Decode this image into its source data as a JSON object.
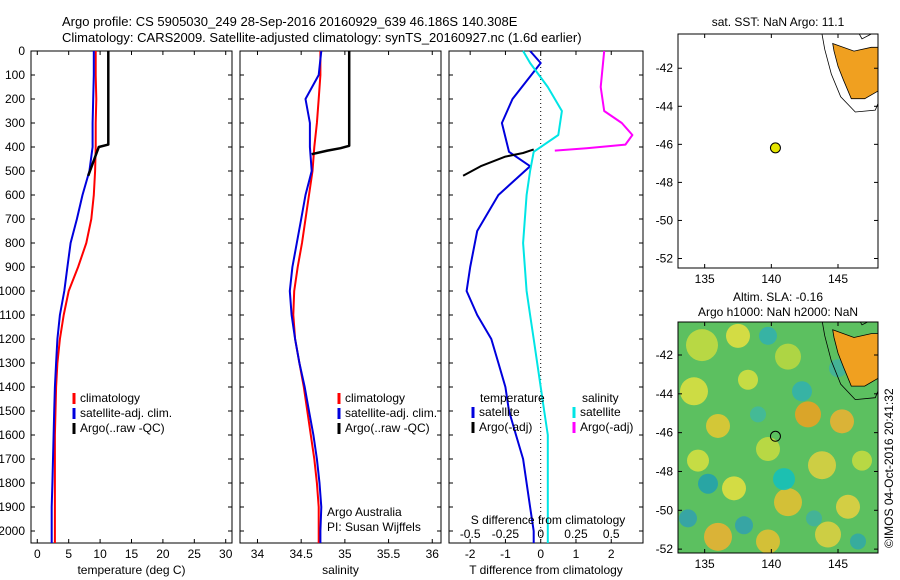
{
  "header": {
    "line1": "Argo profile: CS 5905030_249 28-Sep-2016 20160929_639 46.186S 140.308E",
    "line2": "Climatology: CARS2009. Satellite-adjusted climatology: synTS_20160927.nc (1.6d earlier)"
  },
  "watermark": "©IMOS 04-Oct-2016 20:41:32",
  "colors": {
    "climatology": "#ff0000",
    "satellite": "#0000dd",
    "argo": "#000000",
    "satellite_salinity": "#00e5e5",
    "argo_salinity": "#ff00ff",
    "dot": "#e5e500",
    "land": "#f0a020"
  },
  "chart_data": [
    {
      "type": "line",
      "id": "temperature",
      "xlabel": "temperature (deg C)",
      "ylim": [
        2050,
        0
      ],
      "xlim": [
        -1,
        31
      ],
      "xticks": [
        0,
        5,
        10,
        15,
        20,
        25,
        30
      ],
      "yticks": [
        0,
        100,
        200,
        300,
        400,
        500,
        600,
        700,
        800,
        900,
        1000,
        1100,
        1200,
        1300,
        1400,
        1500,
        1600,
        1700,
        1800,
        1900,
        2000
      ],
      "legend": [
        "climatology",
        "satellite-adj. clim.",
        "Argo(..raw -QC)"
      ],
      "series": [
        {
          "name": "climatology",
          "color": "#ff0000",
          "x": [
            9.3,
            9.3,
            9.4,
            9.3,
            9.3,
            9.2,
            9.0,
            8.6,
            7.8,
            6.5,
            5.0,
            4.2,
            3.6,
            3.2,
            3.0,
            2.9,
            2.8,
            2.8,
            2.8,
            2.8,
            2.8,
            2.8
          ],
          "y": [
            0,
            100,
            200,
            300,
            400,
            500,
            600,
            700,
            800,
            900,
            1000,
            1100,
            1200,
            1300,
            1400,
            1500,
            1600,
            1700,
            1800,
            1900,
            2000,
            2050
          ]
        },
        {
          "name": "satellite-adj. clim.",
          "color": "#0000dd",
          "x": [
            9.0,
            9.0,
            8.9,
            8.8,
            8.8,
            8.3,
            7.2,
            6.3,
            5.3,
            4.8,
            4.3,
            3.6,
            3.2,
            3.0,
            2.8,
            2.7,
            2.6,
            2.5,
            2.4,
            2.3,
            2.3,
            2.3
          ],
          "y": [
            0,
            100,
            200,
            300,
            400,
            500,
            600,
            700,
            800,
            900,
            1000,
            1100,
            1200,
            1300,
            1400,
            1500,
            1600,
            1700,
            1800,
            1900,
            2000,
            2050
          ]
        },
        {
          "name": "Argo(..raw -QC)",
          "color": "#000000",
          "x": [
            11.3,
            11.3,
            11.3,
            11.3,
            11.3,
            9.8,
            9.5,
            8.8,
            8.1
          ],
          "y": [
            0,
            100,
            200,
            300,
            390,
            400,
            420,
            470,
            520
          ]
        }
      ]
    },
    {
      "type": "line",
      "id": "salinity",
      "xlabel": "salinity",
      "ylim": [
        2050,
        0
      ],
      "xlim": [
        33.8,
        36.1
      ],
      "xticks": [
        34,
        34.5,
        35,
        35.5,
        36
      ],
      "xticklabels": [
        "34",
        "34.5",
        "35",
        "35.5",
        "36"
      ],
      "legend": [
        "climatology",
        "satellite-adj. clim.",
        "Argo(..raw -QC)"
      ],
      "annotation": [
        "Argo Australia",
        "PI: Susan Wijffels"
      ],
      "series": [
        {
          "name": "climatology",
          "color": "#ff0000",
          "x": [
            34.72,
            34.72,
            34.7,
            34.68,
            34.65,
            34.63,
            34.59,
            34.55,
            34.51,
            34.46,
            34.42,
            34.41,
            34.43,
            34.48,
            34.53,
            34.57,
            34.61,
            34.65,
            34.68,
            34.7,
            34.7,
            34.7
          ],
          "y": [
            0,
            100,
            200,
            300,
            400,
            500,
            600,
            700,
            800,
            900,
            1000,
            1100,
            1200,
            1300,
            1400,
            1500,
            1600,
            1700,
            1800,
            1900,
            2000,
            2050
          ]
        },
        {
          "name": "satellite-adj. clim.",
          "color": "#0000dd",
          "x": [
            34.73,
            34.7,
            34.55,
            34.6,
            34.6,
            34.62,
            34.55,
            34.5,
            34.45,
            34.4,
            34.37,
            34.39,
            34.43,
            34.48,
            34.54,
            34.59,
            34.64,
            34.68,
            34.71,
            34.73,
            34.72,
            34.72
          ],
          "y": [
            0,
            100,
            200,
            300,
            400,
            500,
            600,
            700,
            800,
            900,
            1000,
            1100,
            1200,
            1300,
            1400,
            1500,
            1600,
            1700,
            1800,
            1900,
            2000,
            2050
          ]
        },
        {
          "name": "Argo(..raw -QC)",
          "color": "#000000",
          "x": [
            35.05,
            35.05,
            35.05,
            35.05,
            35.05,
            34.95,
            34.8,
            34.62
          ],
          "y": [
            0,
            100,
            200,
            300,
            395,
            405,
            415,
            430
          ]
        }
      ]
    },
    {
      "type": "line",
      "id": "difference",
      "xlabel": "T difference from climatology",
      "xlabel_top": "S difference from climatology",
      "ylim": [
        2050,
        0
      ],
      "xlim": [
        -2.6,
        2.9
      ],
      "xticks": [
        -2,
        -1,
        0,
        1,
        2
      ],
      "s_ticks": [
        -0.5,
        -0.25,
        0,
        0.25,
        0.5
      ],
      "s_ticklabels": [
        "-0.5",
        "-0.25",
        "0",
        "0.25",
        "0.5"
      ],
      "legend_temperature_title": "temperature",
      "legend_salinity_title": "salinity",
      "legend": [
        "satellite",
        "Argo(-adj)",
        "satellite",
        "Argo(-adj)"
      ],
      "series": [
        {
          "name": "temperature satellite",
          "color": "#0000dd",
          "x": [
            -0.3,
            0.0,
            -0.8,
            -1.1,
            -0.9,
            -0.3,
            -1.2,
            -1.8,
            -2.0,
            -2.1,
            -1.8,
            -1.4,
            -1.2,
            -1.0,
            -0.9,
            -0.7,
            -0.5,
            -0.4,
            -0.3,
            -0.2,
            -0.2
          ],
          "y": [
            0,
            50,
            200,
            300,
            420,
            480,
            600,
            750,
            900,
            1000,
            1100,
            1200,
            1300,
            1400,
            1500,
            1600,
            1700,
            1800,
            1900,
            2000,
            2050
          ]
        },
        {
          "name": "temperature Argo(-adj)",
          "color": "#000000",
          "x": [
            -2.2,
            -1.7,
            -1.0,
            -0.5,
            -0.2
          ],
          "y": [
            520,
            480,
            440,
            425,
            410
          ]
        },
        {
          "name": "salinity satellite",
          "color": "#00e5e5",
          "x": [
            -0.5,
            -0.3,
            0.2,
            0.6,
            0.5,
            -0.2,
            -0.3,
            -0.4,
            -0.5,
            -0.4,
            -0.3,
            -0.2,
            -0.1,
            0.0,
            0.1,
            0.2,
            0.2,
            0.2,
            0.2,
            0.2,
            0.2
          ],
          "y": [
            0,
            50,
            150,
            250,
            350,
            420,
            500,
            600,
            800,
            1000,
            1100,
            1200,
            1300,
            1400,
            1500,
            1600,
            1700,
            1800,
            1900,
            2000,
            2050
          ]
        },
        {
          "name": "salinity Argo(-adj)",
          "color": "#ff00ff",
          "x": [
            1.8,
            1.7,
            1.8,
            2.3,
            2.6,
            2.4,
            1.3,
            0.4
          ],
          "y": [
            0,
            150,
            250,
            300,
            350,
            390,
            405,
            415
          ]
        }
      ]
    },
    {
      "type": "scatter",
      "id": "sst-map",
      "title": "sat. SST: NaN Argo: 11.1",
      "xlim": [
        133,
        148
      ],
      "ylim": [
        -52.5,
        -40.2
      ],
      "xticks": [
        135,
        140,
        145
      ],
      "yticks": [
        -42,
        -44,
        -46,
        -48,
        -50,
        -52
      ],
      "point": {
        "lon": 140.308,
        "lat": -46.186
      }
    },
    {
      "type": "heatmap",
      "id": "sla-map",
      "title_line1": "Altim. SLA: -0.16",
      "title_line2": "Argo h1000: NaN h2000: NaN",
      "xlim": [
        133,
        148
      ],
      "ylim": [
        -52.2,
        -40.3
      ],
      "xticks": [
        135,
        140,
        145
      ],
      "yticks": [
        -42,
        -44,
        -46,
        -48,
        -50,
        -52
      ],
      "point": {
        "lon": 140.308,
        "lat": -46.186
      }
    }
  ]
}
